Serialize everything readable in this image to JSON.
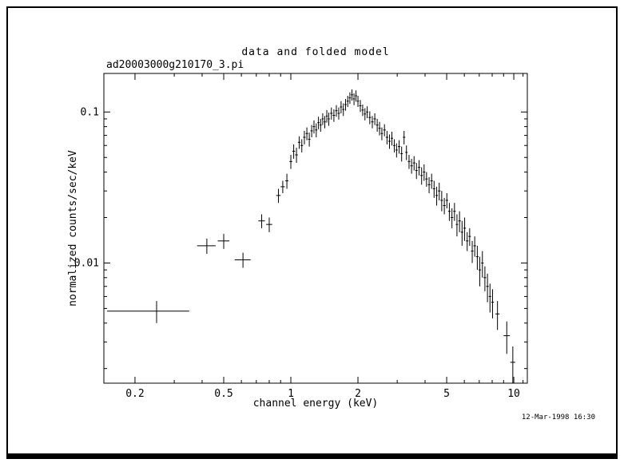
{
  "window": {
    "background": "#ffffff",
    "frame_color": "#000000"
  },
  "plot": {
    "title": "data and folded model",
    "dataset": "ad20003000g210170_3.pi",
    "xlabel": "channel energy (keV)",
    "ylabel": "normalized counts/sec/keV",
    "timestamp": "12-Mar-1998 16:30"
  },
  "chart_data": {
    "type": "scatter",
    "marker": "cross-error-bars",
    "color": "#000000",
    "title": "data and folded model",
    "subtitle": "ad20003000g210170_3.pi",
    "xlabel": "channel energy (keV)",
    "ylabel": "normalized counts/sec/keV",
    "grid": false,
    "legend": "none",
    "x_axis": {
      "scale": "log",
      "range": [
        0.145,
        11.5
      ],
      "major_ticks": [
        0.2,
        0.5,
        1,
        2,
        5,
        10
      ],
      "major_labels": [
        "0.2",
        "0.5",
        "1",
        "2",
        "5",
        "10"
      ],
      "minor_ticks": [
        0.3,
        0.4,
        0.6,
        0.7,
        0.8,
        0.9,
        3,
        4,
        6,
        7,
        8,
        9,
        11
      ]
    },
    "y_axis": {
      "scale": "log",
      "range": [
        0.0016,
        0.18
      ],
      "major_ticks": [
        0.01,
        0.1
      ],
      "major_labels": [
        "0.01",
        "0.1"
      ],
      "minor_ticks": [
        0.002,
        0.003,
        0.004,
        0.005,
        0.006,
        0.007,
        0.008,
        0.009,
        0.02,
        0.03,
        0.04,
        0.05,
        0.06,
        0.07,
        0.08,
        0.09
      ]
    },
    "points_format": [
      "x_keV",
      "x_err",
      "y_counts_sec_keV",
      "y_err"
    ],
    "points": [
      [
        0.25,
        0.1,
        0.0048,
        0.0008
      ],
      [
        0.42,
        0.04,
        0.013,
        0.0015
      ],
      [
        0.5,
        0.03,
        0.014,
        0.0016
      ],
      [
        0.61,
        0.05,
        0.0105,
        0.0012
      ],
      [
        0.74,
        0.025,
        0.019,
        0.002
      ],
      [
        0.8,
        0.025,
        0.018,
        0.002
      ],
      [
        0.88,
        0.02,
        0.028,
        0.003
      ],
      [
        0.92,
        0.02,
        0.032,
        0.003
      ],
      [
        0.96,
        0.015,
        0.035,
        0.004
      ],
      [
        1.0,
        0.015,
        0.047,
        0.005
      ],
      [
        1.03,
        0.015,
        0.055,
        0.006
      ],
      [
        1.06,
        0.015,
        0.052,
        0.006
      ],
      [
        1.09,
        0.015,
        0.063,
        0.006
      ],
      [
        1.12,
        0.015,
        0.06,
        0.006
      ],
      [
        1.15,
        0.015,
        0.068,
        0.007
      ],
      [
        1.18,
        0.015,
        0.072,
        0.007
      ],
      [
        1.21,
        0.015,
        0.066,
        0.007
      ],
      [
        1.24,
        0.015,
        0.075,
        0.007
      ],
      [
        1.27,
        0.015,
        0.08,
        0.008
      ],
      [
        1.3,
        0.015,
        0.076,
        0.008
      ],
      [
        1.33,
        0.015,
        0.085,
        0.008
      ],
      [
        1.36,
        0.015,
        0.082,
        0.008
      ],
      [
        1.39,
        0.015,
        0.09,
        0.008
      ],
      [
        1.42,
        0.015,
        0.086,
        0.008
      ],
      [
        1.45,
        0.015,
        0.094,
        0.009
      ],
      [
        1.48,
        0.015,
        0.09,
        0.009
      ],
      [
        1.52,
        0.02,
        0.098,
        0.009
      ],
      [
        1.56,
        0.02,
        0.095,
        0.009
      ],
      [
        1.6,
        0.02,
        0.102,
        0.009
      ],
      [
        1.64,
        0.02,
        0.098,
        0.009
      ],
      [
        1.68,
        0.02,
        0.108,
        0.01
      ],
      [
        1.72,
        0.02,
        0.104,
        0.01
      ],
      [
        1.76,
        0.02,
        0.112,
        0.01
      ],
      [
        1.8,
        0.02,
        0.118,
        0.01
      ],
      [
        1.84,
        0.02,
        0.124,
        0.011
      ],
      [
        1.88,
        0.02,
        0.13,
        0.011
      ],
      [
        1.92,
        0.02,
        0.122,
        0.011
      ],
      [
        1.96,
        0.02,
        0.128,
        0.011
      ],
      [
        2.0,
        0.02,
        0.118,
        0.01
      ],
      [
        2.05,
        0.025,
        0.11,
        0.01
      ],
      [
        2.1,
        0.025,
        0.103,
        0.009
      ],
      [
        2.15,
        0.025,
        0.097,
        0.009
      ],
      [
        2.2,
        0.025,
        0.1,
        0.009
      ],
      [
        2.26,
        0.03,
        0.092,
        0.009
      ],
      [
        2.32,
        0.03,
        0.086,
        0.008
      ],
      [
        2.38,
        0.03,
        0.09,
        0.008
      ],
      [
        2.44,
        0.03,
        0.082,
        0.008
      ],
      [
        2.5,
        0.03,
        0.078,
        0.008
      ],
      [
        2.56,
        0.03,
        0.072,
        0.007
      ],
      [
        2.63,
        0.035,
        0.076,
        0.007
      ],
      [
        2.7,
        0.035,
        0.068,
        0.007
      ],
      [
        2.77,
        0.035,
        0.064,
        0.007
      ],
      [
        2.84,
        0.035,
        0.067,
        0.007
      ],
      [
        2.91,
        0.035,
        0.06,
        0.006
      ],
      [
        2.98,
        0.035,
        0.056,
        0.006
      ],
      [
        3.06,
        0.04,
        0.059,
        0.006
      ],
      [
        3.14,
        0.04,
        0.053,
        0.006
      ],
      [
        3.22,
        0.04,
        0.068,
        0.007
      ],
      [
        3.3,
        0.04,
        0.054,
        0.006
      ],
      [
        3.39,
        0.045,
        0.047,
        0.005
      ],
      [
        3.48,
        0.045,
        0.044,
        0.005
      ],
      [
        3.57,
        0.045,
        0.046,
        0.005
      ],
      [
        3.66,
        0.045,
        0.041,
        0.005
      ],
      [
        3.76,
        0.05,
        0.043,
        0.005
      ],
      [
        3.86,
        0.05,
        0.038,
        0.005
      ],
      [
        3.96,
        0.05,
        0.04,
        0.005
      ],
      [
        4.06,
        0.05,
        0.036,
        0.004
      ],
      [
        4.17,
        0.055,
        0.033,
        0.004
      ],
      [
        4.28,
        0.055,
        0.035,
        0.004
      ],
      [
        4.39,
        0.055,
        0.031,
        0.004
      ],
      [
        4.51,
        0.06,
        0.028,
        0.004
      ],
      [
        4.63,
        0.06,
        0.03,
        0.004
      ],
      [
        4.75,
        0.06,
        0.026,
        0.004
      ],
      [
        4.88,
        0.065,
        0.024,
        0.003
      ],
      [
        5.01,
        0.065,
        0.026,
        0.003
      ],
      [
        5.14,
        0.065,
        0.022,
        0.003
      ],
      [
        5.28,
        0.07,
        0.02,
        0.003
      ],
      [
        5.42,
        0.07,
        0.022,
        0.003
      ],
      [
        5.56,
        0.07,
        0.018,
        0.003
      ],
      [
        5.71,
        0.075,
        0.019,
        0.003
      ],
      [
        5.86,
        0.075,
        0.016,
        0.003
      ],
      [
        6.02,
        0.08,
        0.017,
        0.003
      ],
      [
        6.18,
        0.08,
        0.014,
        0.002
      ],
      [
        6.34,
        0.08,
        0.015,
        0.002
      ],
      [
        6.51,
        0.085,
        0.012,
        0.002
      ],
      [
        6.68,
        0.085,
        0.013,
        0.002
      ],
      [
        6.86,
        0.09,
        0.011,
        0.002
      ],
      [
        7.04,
        0.09,
        0.009,
        0.002
      ],
      [
        7.23,
        0.095,
        0.01,
        0.002
      ],
      [
        7.42,
        0.1,
        0.008,
        0.0015
      ],
      [
        7.62,
        0.1,
        0.007,
        0.0015
      ],
      [
        7.82,
        0.1,
        0.006,
        0.0013
      ],
      [
        8.03,
        0.11,
        0.0055,
        0.0012
      ],
      [
        8.45,
        0.18,
        0.0046,
        0.001
      ],
      [
        9.3,
        0.3,
        0.0033,
        0.0008
      ],
      [
        9.9,
        0.25,
        0.0022,
        0.0006
      ]
    ]
  }
}
